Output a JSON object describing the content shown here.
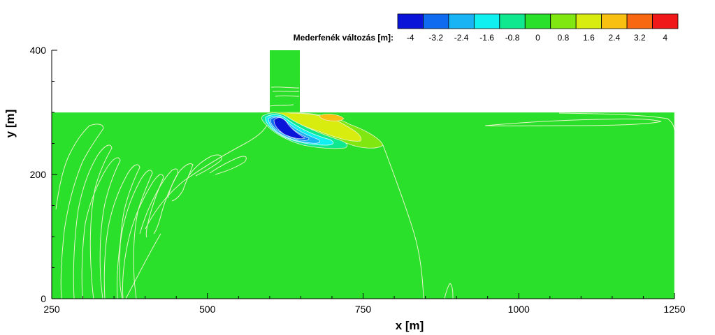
{
  "chart_data": {
    "type": "heatmap",
    "xlabel": "x [m]",
    "ylabel": "y [m]",
    "xlim": [
      250,
      1250
    ],
    "ylim": [
      0,
      400
    ],
    "x_ticks": [
      250,
      500,
      750,
      1000,
      1250
    ],
    "y_ticks": [
      0,
      200,
      400
    ],
    "channel": {
      "x": [
        250,
        1250
      ],
      "y": [
        0,
        300
      ]
    },
    "branch": {
      "x": [
        600,
        648
      ],
      "y": [
        300,
        400
      ]
    },
    "legend": {
      "title": "Mederfenék változás [m]:",
      "placement": "top-right",
      "labels": [
        "-4",
        "-3.2",
        "-2.4",
        "-1.6",
        "-0.8",
        "0",
        "0.8",
        "1.6",
        "2.4",
        "3.2",
        "4"
      ],
      "colors": [
        "#0a14d8",
        "#0f6cf0",
        "#18b4f4",
        "#10f0f0",
        "#10e890",
        "#2ae02a",
        "#80e810",
        "#d8ec10",
        "#f8c010",
        "#f86810",
        "#f01818"
      ]
    },
    "background_level": "0",
    "features": [
      {
        "name": "scour",
        "value_min": -4,
        "center": [
          628,
          282
        ]
      },
      {
        "name": "deposition",
        "value_max": 2.4,
        "center": [
          705,
          283
        ]
      }
    ]
  }
}
